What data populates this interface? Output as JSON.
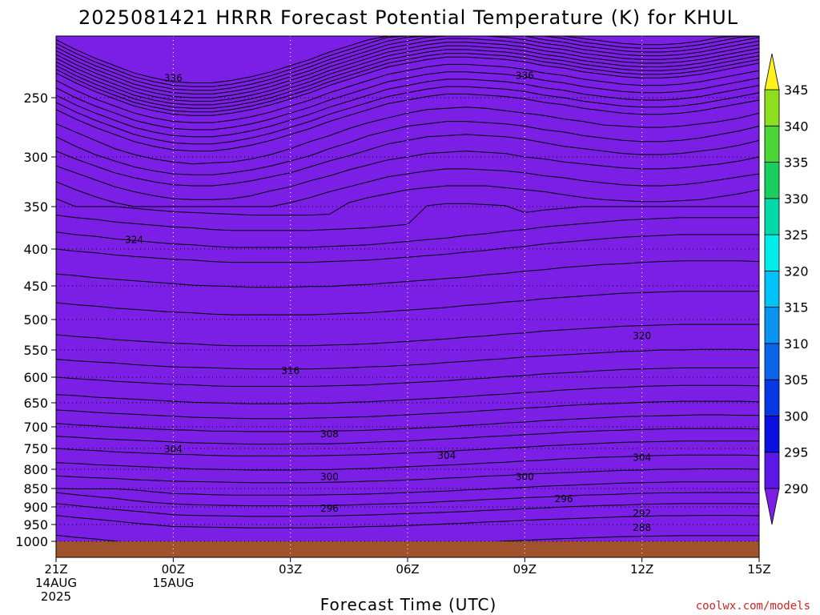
{
  "title": "2025081421 HRRR Forecast Potential Temperature (K) for KHUL",
  "credit": "coolwx.com/models",
  "colors": {
    "ground": "#a0522d",
    "bands": [
      "#7c1fe6",
      "#5b18e6",
      "#0b10e2",
      "#0a37e6",
      "#0a63e9",
      "#0b93f0",
      "#00c2f8",
      "#00ece8",
      "#01d9a8",
      "#18cf5f",
      "#4ad636",
      "#8dde1c",
      "#d9e90e",
      "#fff21c"
    ]
  },
  "chart_data": {
    "type": "contour",
    "title": "2025081421 HRRR Forecast Potential Temperature (K) for KHUL",
    "xlabel": "Forecast Time (UTC)",
    "ylabel": "",
    "y_axis": "pressure (hPa), inverted",
    "y_ticks": [
      250,
      300,
      350,
      400,
      450,
      500,
      550,
      600,
      650,
      700,
      750,
      800,
      850,
      900,
      950,
      1000
    ],
    "x_ticks": [
      {
        "hour": 0,
        "label": "21Z",
        "date": "14AUG",
        "year": "2025"
      },
      {
        "hour": 3,
        "label": "00Z",
        "date": "15AUG",
        "year": ""
      },
      {
        "hour": 6,
        "label": "03Z",
        "date": "",
        "year": ""
      },
      {
        "hour": 9,
        "label": "06Z",
        "date": "",
        "year": ""
      },
      {
        "hour": 12,
        "label": "09Z",
        "date": "",
        "year": ""
      },
      {
        "hour": 15,
        "label": "12Z",
        "date": "",
        "year": ""
      },
      {
        "hour": 18,
        "label": "15Z",
        "date": "",
        "year": ""
      }
    ],
    "xlim": [
      0,
      18
    ],
    "ylim": [
      1030,
      200
    ],
    "grid": true,
    "colorbar": {
      "levels": [
        290,
        295,
        300,
        305,
        310,
        315,
        320,
        325,
        330,
        335,
        340,
        345
      ],
      "labels": [
        "290",
        "295",
        "300",
        "305",
        "310",
        "315",
        "320",
        "325",
        "330",
        "335",
        "340",
        "345"
      ],
      "extend": "both"
    },
    "ground_pressure": 1000,
    "contour_labels": [
      {
        "value": "336",
        "hour": 3.0,
        "p": 234
      },
      {
        "value": "336",
        "hour": 12.0,
        "p": 232
      },
      {
        "value": "324",
        "hour": 2.0,
        "p": 389
      },
      {
        "value": "320",
        "hour": 15.0,
        "p": 527
      },
      {
        "value": "316",
        "hour": 6.0,
        "p": 588
      },
      {
        "value": "308",
        "hour": 7.0,
        "p": 717
      },
      {
        "value": "304",
        "hour": 3.0,
        "p": 752
      },
      {
        "value": "304",
        "hour": 10.0,
        "p": 767
      },
      {
        "value": "304",
        "hour": 15.0,
        "p": 772
      },
      {
        "value": "300",
        "hour": 7.0,
        "p": 820
      },
      {
        "value": "300",
        "hour": 12.0,
        "p": 820
      },
      {
        "value": "296",
        "hour": 7.0,
        "p": 904
      },
      {
        "value": "296",
        "hour": 13.0,
        "p": 878
      },
      {
        "value": "292",
        "hour": 15.0,
        "p": 918
      },
      {
        "value": "288",
        "hour": 15.0,
        "p": 960
      }
    ]
  }
}
